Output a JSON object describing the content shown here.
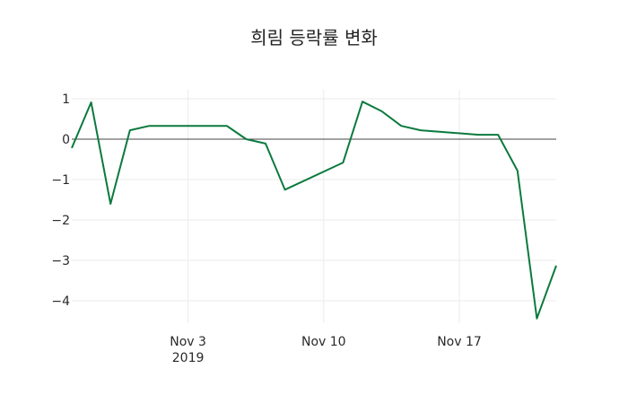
{
  "chart_data": {
    "type": "line",
    "title": "희림 등락률 변화",
    "xlabel": "",
    "ylabel": "",
    "x": [
      "2019-10-28",
      "2019-10-29",
      "2019-10-30",
      "2019-10-31",
      "2019-11-01",
      "2019-11-05",
      "2019-11-06",
      "2019-11-07",
      "2019-11-08",
      "2019-11-11",
      "2019-11-12",
      "2019-11-13",
      "2019-11-14",
      "2019-11-15",
      "2019-11-18",
      "2019-11-19",
      "2019-11-20",
      "2019-11-21",
      "2019-11-22"
    ],
    "series": [
      {
        "name": "등락률",
        "color": "#0b7a3e",
        "values": [
          -0.22,
          0.91,
          -1.6,
          0.22,
          0.33,
          0.33,
          0.0,
          -0.11,
          -1.25,
          -0.58,
          0.93,
          0.69,
          0.33,
          0.22,
          0.11,
          0.11,
          -0.78,
          -4.44,
          -3.13
        ]
      }
    ],
    "x_ticks": [
      {
        "date": "2019-11-03",
        "label": "Nov 3",
        "sublabel": "2019"
      },
      {
        "date": "2019-11-10",
        "label": "Nov 10",
        "sublabel": ""
      },
      {
        "date": "2019-11-17",
        "label": "Nov 17",
        "sublabel": ""
      }
    ],
    "y_ticks": [
      1,
      0,
      -1,
      -2,
      -3,
      -4
    ],
    "y_tick_labels": [
      "1",
      "0",
      "−1",
      "−2",
      "−3",
      "−4"
    ],
    "xlim": [
      "2019-10-28",
      "2019-11-22"
    ],
    "ylim": [
      -4.44,
      1.0
    ],
    "grid": true,
    "zero_line": true,
    "legend": "none"
  }
}
